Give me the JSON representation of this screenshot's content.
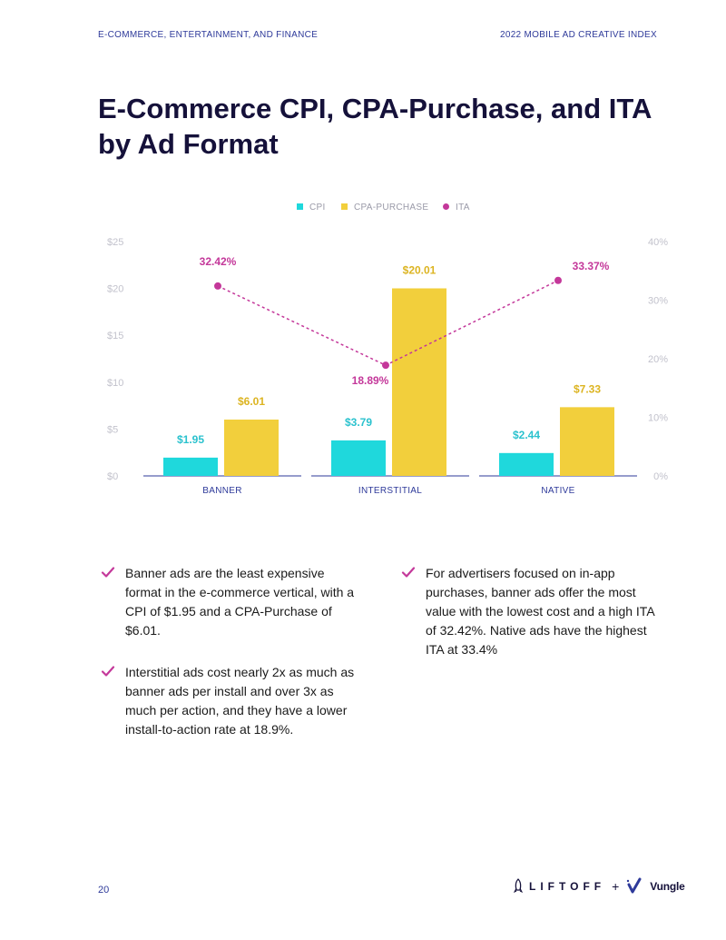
{
  "header": {
    "left": "E-COMMERCE, ENTERTAINMENT, AND FINANCE",
    "right": "2022 MOBILE AD CREATIVE INDEX"
  },
  "title": "E-Commerce CPI, CPA-Purchase, and ITA by Ad Format",
  "colors": {
    "cpi": "#1fd8dc",
    "cpa": "#f2cf3c",
    "ita": "#c4389a",
    "axis": "#2e3a9a"
  },
  "chart_data": {
    "type": "bar",
    "categories": [
      "BANNER",
      "INTERSTITIAL",
      "NATIVE"
    ],
    "series": [
      {
        "name": "CPI",
        "axis": "left",
        "values": [
          1.95,
          3.79,
          2.44
        ],
        "labels": [
          "$1.95",
          "$3.79",
          "$2.44"
        ]
      },
      {
        "name": "CPA-PURCHASE",
        "axis": "left",
        "values": [
          6.01,
          20.01,
          7.33
        ],
        "labels": [
          "$6.01",
          "$20.01",
          "$7.33"
        ]
      },
      {
        "name": "ITA",
        "type": "line",
        "axis": "right",
        "values": [
          32.42,
          18.89,
          33.37
        ],
        "labels": [
          "32.42%",
          "18.89%",
          "33.37%"
        ]
      }
    ],
    "left_axis": {
      "ylim": [
        0,
        25
      ],
      "ticks": [
        "$0",
        "$5",
        "$10",
        "$15",
        "$20",
        "$25"
      ]
    },
    "right_axis": {
      "ylim": [
        0,
        40
      ],
      "ticks": [
        "0%",
        "10%",
        "20%",
        "30%",
        "40%"
      ]
    },
    "legend": {
      "placement": "top-center",
      "entries": [
        "CPI",
        "CPA-PURCHASE",
        "ITA"
      ]
    }
  },
  "bullets": [
    {
      "text": "Banner ads are the least expensive format in the e-commerce vertical, with a CPI of $1.95 and a CPA-Purchase of $6.01."
    },
    {
      "text": "Interstitial ads cost nearly 2x as much as banner ads per install and over 3x as much per action, and they have a lower install-to-action rate at 18.9%."
    },
    {
      "text": "For advertisers focused on in-app purchases, banner ads offer the most value with the lowest cost and a high ITA of 32.42%. Native ads have the highest ITA at 33.4%"
    }
  ],
  "footer": {
    "page_number": "20",
    "brand_left": "LIFTOFF",
    "plus": "+",
    "brand_right": "Vungle"
  }
}
